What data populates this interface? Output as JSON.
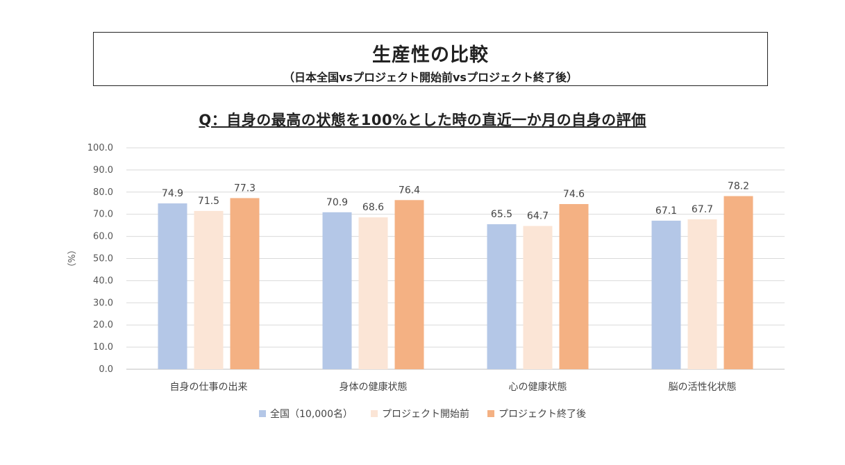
{
  "header": {
    "title": "生産性の比較",
    "subtitle": "（日本全国vsプロジェクト開始前vsプロジェクト終了後）"
  },
  "question": "Q：自身の最高の状態を100%とした時の直近一か月の自身の評価",
  "chart_data": {
    "type": "bar",
    "ylabel": "（%）",
    "ylim": [
      0,
      100
    ],
    "yticks": [
      "100.0",
      "90.0",
      "80.0",
      "70.0",
      "60.0",
      "50.0",
      "40.0",
      "30.0",
      "20.0",
      "10.0",
      "0.0"
    ],
    "grid": true,
    "legend_position": "bottom",
    "categories": [
      "自身の仕事の出来",
      "身体の健康状態",
      "心の健康状態",
      "脳の活性化状態"
    ],
    "series": [
      {
        "name": "全国（10,000名）",
        "color": "#b4c7e7",
        "values": [
          74.9,
          70.9,
          65.5,
          67.1
        ]
      },
      {
        "name": "プロジェクト開始前",
        "color": "#fbe5d6",
        "values": [
          71.5,
          68.6,
          64.7,
          67.7
        ]
      },
      {
        "name": "プロジェクト終了後",
        "color": "#f4b183",
        "values": [
          77.3,
          76.4,
          74.6,
          78.2
        ]
      }
    ]
  }
}
